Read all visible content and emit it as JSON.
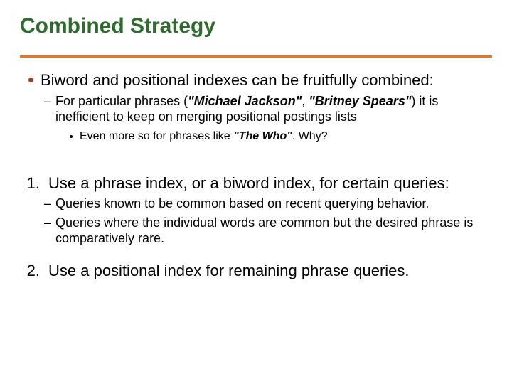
{
  "colors": {
    "title": "#2f6b2f",
    "rule": "#e07b1f",
    "disc": "#a63b2a",
    "text": "#000000",
    "background": "#ffffff"
  },
  "typography": {
    "family": "Arial",
    "title_size": 30,
    "l1_size": 22,
    "l2_size": 18,
    "l3_size": 16
  },
  "title": "Combined Strategy",
  "b1": "Biword and positional indexes can be fruitfully combined:",
  "d1_pre": "For particular phrases (",
  "d1_phrase1": "\"Michael Jackson\"",
  "d1_sep": ", ",
  "d1_phrase2": "\"Britney Spears\"",
  "d1_post": ") it is inefficient to keep on merging positional postings lists",
  "s1_pre": "Even more so for phrases like ",
  "s1_phrase": "\"The Who\"",
  "s1_post": ". Why?",
  "n1_num": "1.",
  "n1": "Use a phrase index, or a biword index, for certain queries:",
  "d2a": "Queries known to be common based on recent querying behavior.",
  "d2b": "Queries where the individual words are common but the desired phrase is comparatively rare.",
  "n2_num": "2.",
  "n2": "Use a positional index for remaining phrase queries."
}
